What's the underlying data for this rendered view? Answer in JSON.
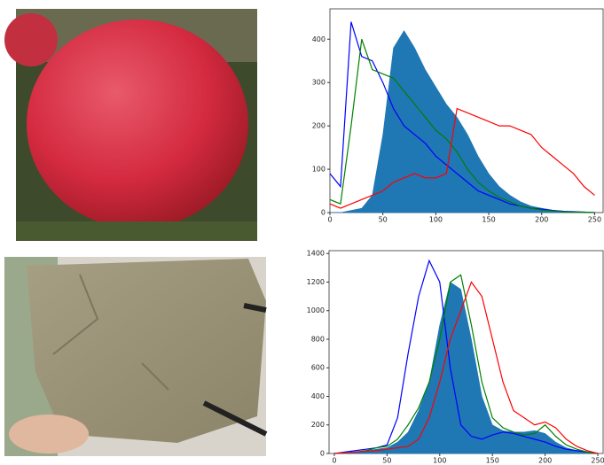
{
  "chart_data": [
    {
      "type": "line",
      "x": [
        0,
        10,
        20,
        30,
        40,
        50,
        60,
        70,
        80,
        90,
        100,
        110,
        120,
        130,
        140,
        150,
        160,
        170,
        180,
        190,
        200,
        210,
        220,
        230,
        240,
        250
      ],
      "xlim": [
        0,
        258
      ],
      "xticks": [
        0,
        50,
        100,
        150,
        200,
        250
      ],
      "ylim": [
        0,
        470
      ],
      "yticks": [
        0,
        100,
        200,
        300,
        400
      ],
      "series": [
        {
          "style": "area",
          "color": "#1f77b4",
          "values": [
            0,
            0,
            5,
            10,
            40,
            180,
            380,
            420,
            380,
            330,
            290,
            250,
            220,
            180,
            130,
            90,
            60,
            40,
            25,
            15,
            10,
            6,
            3,
            2,
            1,
            0
          ]
        },
        {
          "style": "line",
          "color": "#0000ff",
          "values": [
            90,
            60,
            440,
            360,
            350,
            300,
            240,
            200,
            180,
            160,
            130,
            110,
            90,
            70,
            50,
            40,
            30,
            20,
            15,
            10,
            8,
            5,
            3,
            2,
            1,
            0
          ]
        },
        {
          "style": "line",
          "color": "#008000",
          "values": [
            30,
            20,
            200,
            400,
            330,
            320,
            310,
            280,
            250,
            220,
            190,
            170,
            140,
            100,
            70,
            50,
            35,
            25,
            15,
            10,
            6,
            4,
            2,
            1,
            1,
            0
          ]
        },
        {
          "style": "line",
          "color": "#ff0000",
          "values": [
            20,
            10,
            20,
            30,
            40,
            50,
            70,
            80,
            90,
            80,
            80,
            90,
            240,
            230,
            220,
            210,
            200,
            200,
            190,
            180,
            150,
            130,
            110,
            90,
            60,
            40
          ]
        }
      ]
    },
    {
      "type": "line",
      "x": [
        0,
        10,
        20,
        30,
        40,
        50,
        60,
        70,
        80,
        90,
        100,
        110,
        120,
        130,
        140,
        150,
        160,
        170,
        180,
        190,
        200,
        210,
        220,
        230,
        240,
        250
      ],
      "xlim": [
        -5,
        255
      ],
      "xticks": [
        0,
        50,
        100,
        150,
        200,
        250
      ],
      "ylim": [
        0,
        1420
      ],
      "yticks": [
        0,
        200,
        400,
        600,
        800,
        1000,
        1200,
        1400
      ],
      "series": [
        {
          "style": "area",
          "color": "#1f77b4",
          "values": [
            0,
            5,
            10,
            20,
            30,
            40,
            80,
            150,
            300,
            500,
            900,
            1200,
            1150,
            800,
            400,
            200,
            160,
            150,
            150,
            160,
            140,
            80,
            40,
            20,
            10,
            0
          ]
        },
        {
          "style": "line",
          "color": "#0000ff",
          "values": [
            0,
            10,
            20,
            30,
            40,
            60,
            250,
            700,
            1100,
            1350,
            1200,
            600,
            200,
            120,
            100,
            130,
            150,
            140,
            120,
            100,
            80,
            50,
            30,
            20,
            10,
            0
          ]
        },
        {
          "style": "line",
          "color": "#008000",
          "values": [
            0,
            5,
            10,
            20,
            40,
            50,
            100,
            200,
            320,
            500,
            800,
            1200,
            1250,
            900,
            500,
            250,
            180,
            150,
            130,
            140,
            200,
            120,
            60,
            30,
            10,
            0
          ]
        },
        {
          "style": "line",
          "color": "#ff0000",
          "values": [
            0,
            5,
            10,
            15,
            20,
            30,
            40,
            50,
            100,
            250,
            500,
            800,
            1000,
            1200,
            1100,
            800,
            500,
            300,
            250,
            200,
            220,
            180,
            100,
            50,
            20,
            0
          ]
        }
      ]
    }
  ]
}
